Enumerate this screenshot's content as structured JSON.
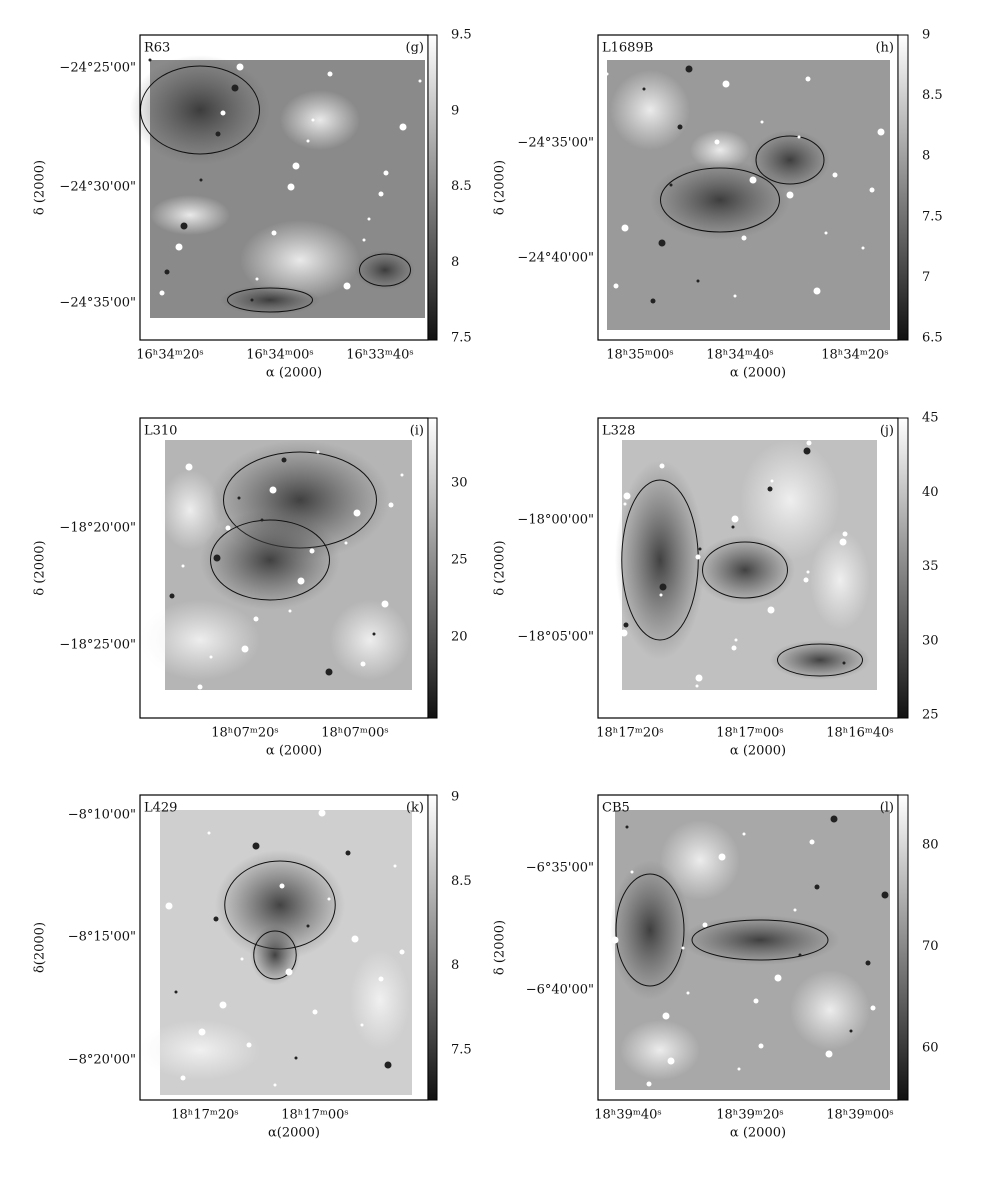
{
  "panels": [
    {
      "name": "R63",
      "letter": "(g)",
      "yticks": [
        "−24°25'00\"",
        "−24°30'00\"",
        "−24°35'00\""
      ],
      "xticks": [
        "16ʰ34ᵐ20ˢ",
        "16ʰ34ᵐ00ˢ",
        "16ʰ33ᵐ40ˢ"
      ],
      "xlabel": "α (2000)",
      "ylabel": "δ (2000)",
      "colorbar": [
        "9.5",
        "9",
        "8.5",
        "8",
        "7.5"
      ]
    },
    {
      "name": "L1689B",
      "letter": "(h)",
      "yticks": [
        "−24°35'00\"",
        "−24°40'00\""
      ],
      "xticks": [
        "18ʰ35ᵐ00ˢ",
        "18ʰ34ᵐ40ˢ",
        "18ʰ34ᵐ20ˢ"
      ],
      "xlabel": "α (2000)",
      "ylabel": "δ (2000)",
      "colorbar": [
        "9",
        "8.5",
        "8",
        "7.5",
        "7",
        "6.5"
      ]
    },
    {
      "name": "L310",
      "letter": "(i)",
      "yticks": [
        "−18°20'00\"",
        "−18°25'00\""
      ],
      "xticks": [
        "18ʰ07ᵐ20ˢ",
        "18ʰ07ᵐ00ˢ"
      ],
      "xlabel": "α (2000)",
      "ylabel": "δ (2000)",
      "colorbar": [
        "30",
        "25",
        "20"
      ]
    },
    {
      "name": "L328",
      "letter": "(j)",
      "yticks": [
        "−18°00'00\"",
        "−18°05'00\""
      ],
      "xticks": [
        "18ʰ17ᵐ20ˢ",
        "18ʰ17ᵐ00ˢ",
        "18ʰ16ᵐ40ˢ"
      ],
      "xlabel": "α (2000)",
      "ylabel": "δ (2000)",
      "colorbar": [
        "45",
        "40",
        "35",
        "30",
        "25"
      ]
    },
    {
      "name": "L429",
      "letter": "(k)",
      "yticks": [
        "−8°10'00\"",
        "−8°15'00\"",
        "−8°20'00\""
      ],
      "xticks": [
        "18ʰ17ᵐ20ˢ",
        "18ʰ17ᵐ00ˢ"
      ],
      "xlabel": "α(2000)",
      "ylabel": "δ(2000)",
      "colorbar": [
        "9",
        "8.5",
        "8",
        "7.5"
      ]
    },
    {
      "name": "CB5",
      "letter": "(l)",
      "yticks": [
        "−6°35'00\"",
        "−6°40'00\""
      ],
      "xticks": [
        "18ʰ39ᵐ40ˢ",
        "18ʰ39ᵐ20ˢ",
        "18ʰ39ᵐ00ˢ"
      ],
      "xlabel": "α (2000)",
      "ylabel": "δ (2000)",
      "colorbar": [
        "80",
        "70",
        "60"
      ]
    }
  ]
}
